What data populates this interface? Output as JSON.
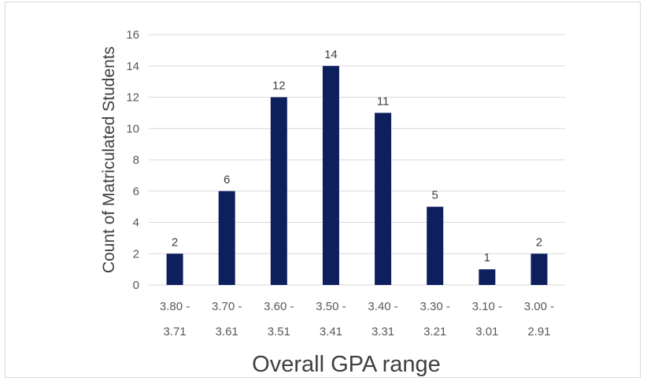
{
  "chart_data": {
    "type": "bar",
    "categories": [
      [
        "3.80 -",
        "3.71"
      ],
      [
        "3.70 -",
        "3.61"
      ],
      [
        "3.60 -",
        "3.51"
      ],
      [
        "3.50 -",
        "3.41"
      ],
      [
        "3.40 -",
        "3.31"
      ],
      [
        "3.30 -",
        "3.21"
      ],
      [
        "3.10 -",
        "3.01"
      ],
      [
        "3.00 -",
        "2.91"
      ]
    ],
    "values": [
      2,
      6,
      12,
      14,
      11,
      5,
      1,
      2
    ],
    "title": "",
    "xlabel": "Overall GPA range",
    "ylabel": "Count of Matriculated Students",
    "ylim": [
      0,
      16
    ],
    "yticks": [
      0,
      2,
      4,
      6,
      8,
      10,
      12,
      14,
      16
    ],
    "grid": "horizontal",
    "data_labels": true,
    "bar_color": "#0d1f5c"
  }
}
